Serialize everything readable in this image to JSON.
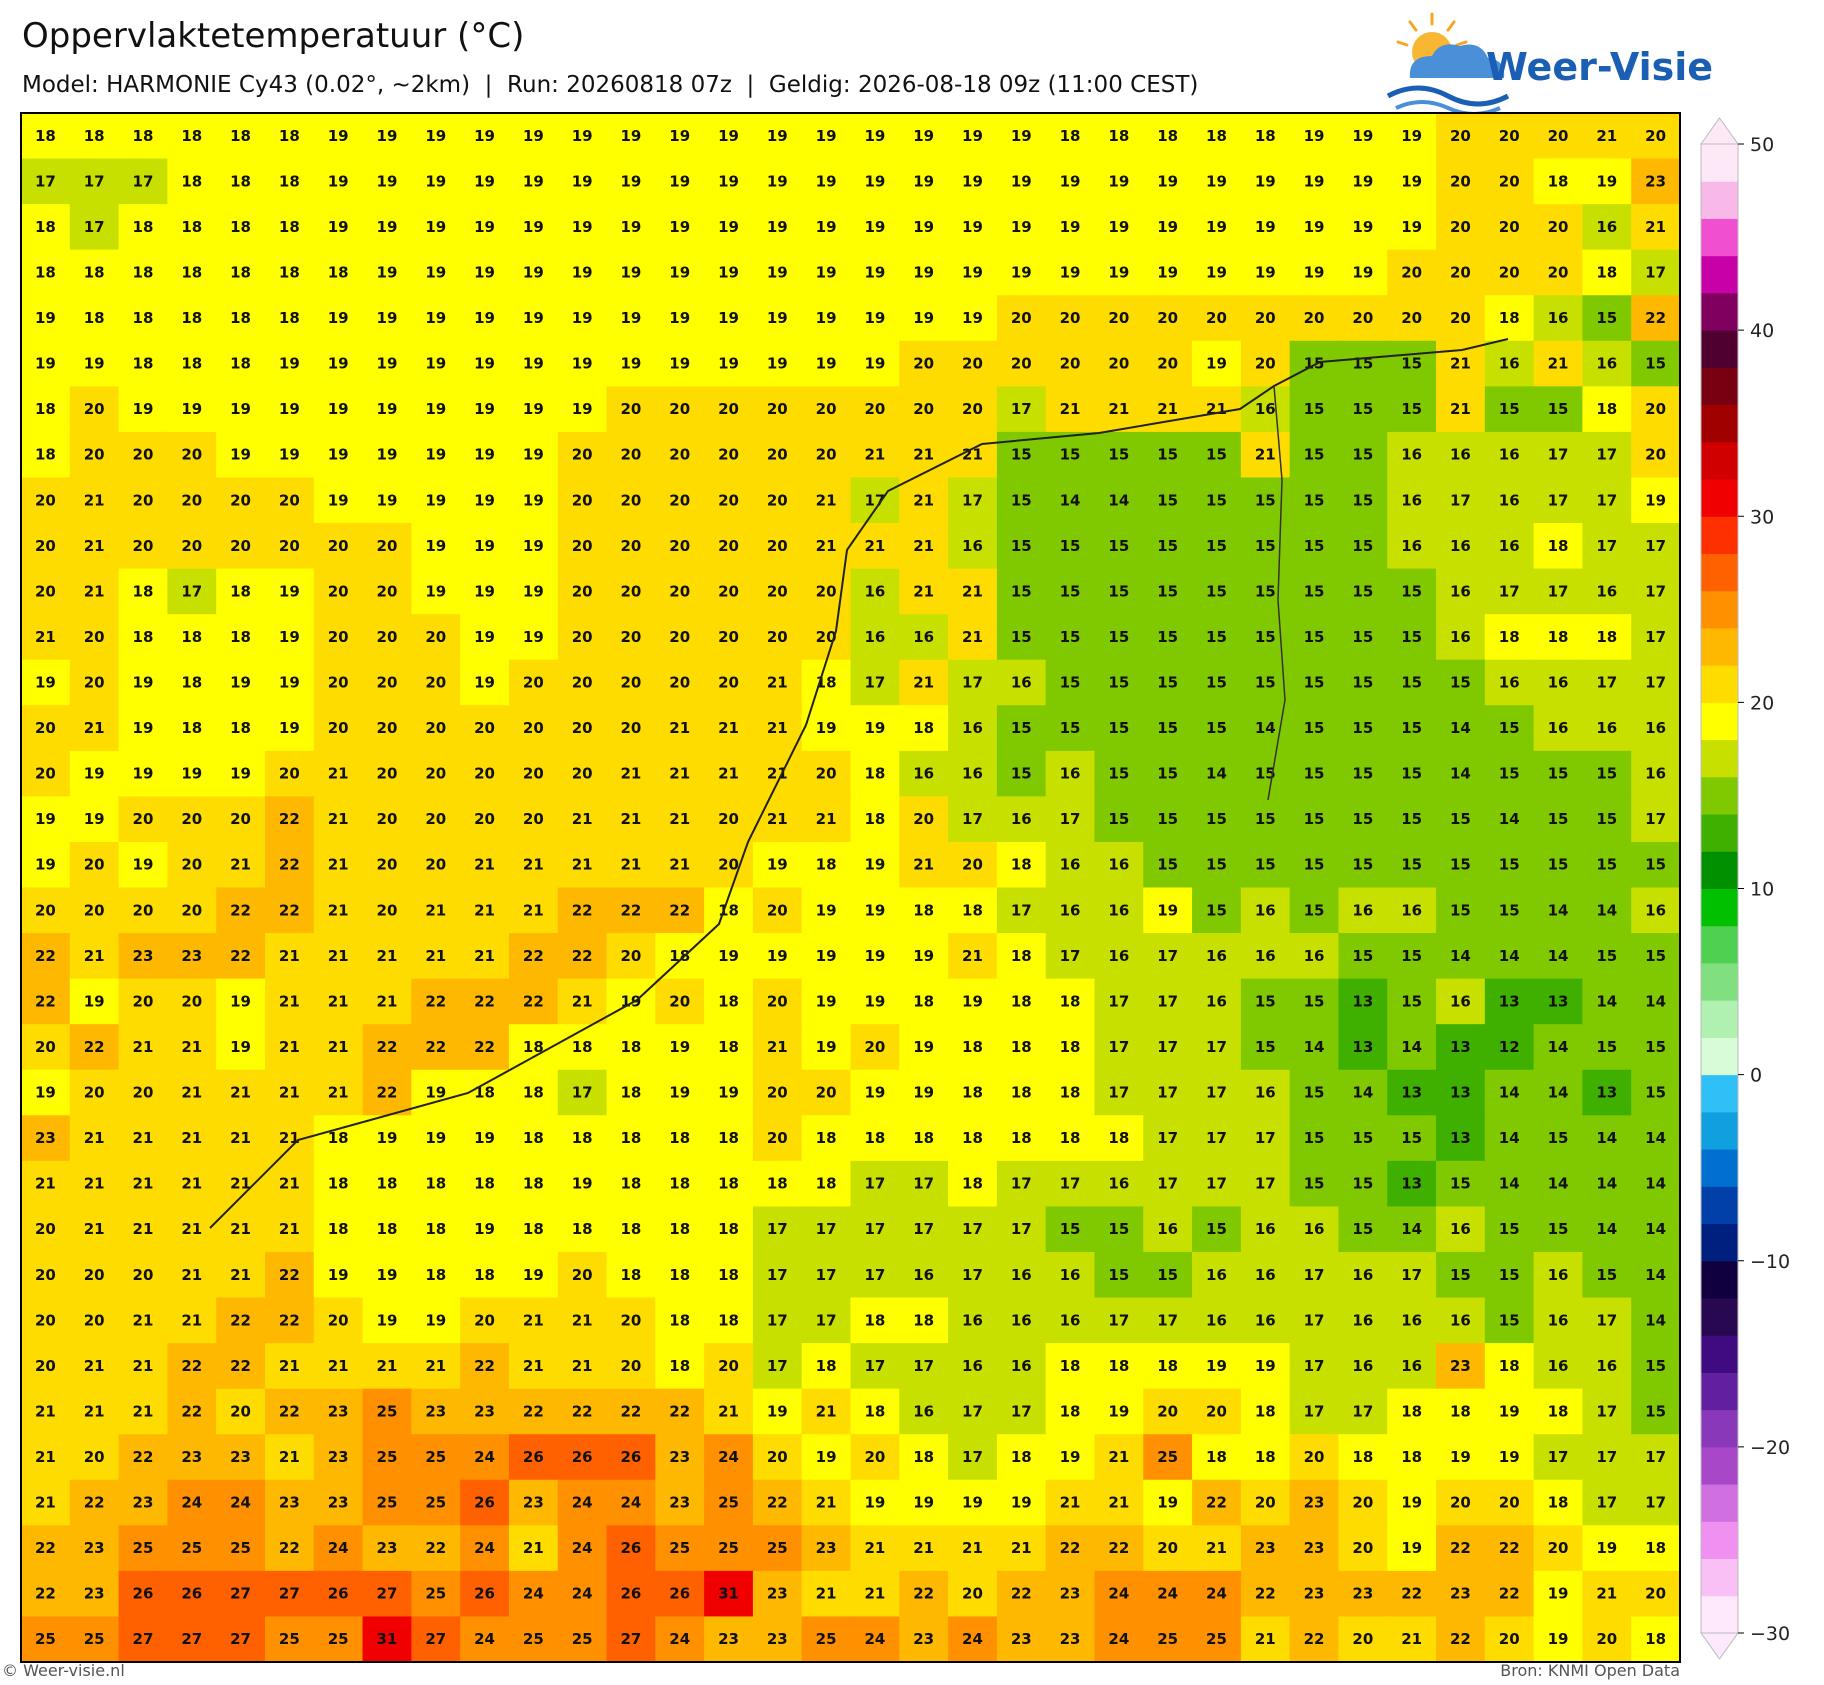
{
  "header": {
    "title": "Oppervlaktetemperatuur (°C)",
    "subtitle": "Model: HARMONIE Cy43 (0.02°, ~2km)  |  Run: 20260818 07z  |  Geldig: 2026-08-18 09z (11:00 CEST)"
  },
  "logo": "Weer-Visie",
  "map": {
    "grid": [
      [
        18,
        18,
        18,
        18,
        18,
        18,
        19,
        19,
        19,
        19,
        19,
        19,
        19,
        19,
        19,
        19,
        19,
        19,
        19,
        19,
        19,
        18,
        18,
        18,
        18,
        18,
        19,
        19,
        19,
        20,
        20,
        20,
        21,
        20
      ],
      [
        17,
        17,
        17,
        18,
        18,
        18,
        19,
        19,
        19,
        19,
        19,
        19,
        19,
        19,
        19,
        19,
        19,
        19,
        19,
        19,
        19,
        19,
        19,
        19,
        19,
        19,
        19,
        19,
        19,
        20,
        20,
        18,
        19,
        23
      ],
      [
        18,
        17,
        18,
        18,
        18,
        18,
        19,
        19,
        19,
        19,
        19,
        19,
        19,
        19,
        19,
        19,
        19,
        19,
        19,
        19,
        19,
        19,
        19,
        19,
        19,
        19,
        19,
        19,
        19,
        20,
        20,
        20,
        16,
        21
      ],
      [
        18,
        18,
        18,
        18,
        18,
        18,
        18,
        19,
        19,
        19,
        19,
        19,
        19,
        19,
        19,
        19,
        19,
        19,
        19,
        19,
        19,
        19,
        19,
        19,
        19,
        19,
        19,
        19,
        20,
        20,
        20,
        20,
        18,
        17
      ],
      [
        19,
        18,
        18,
        18,
        18,
        18,
        19,
        19,
        19,
        19,
        19,
        19,
        19,
        19,
        19,
        19,
        19,
        19,
        19,
        19,
        20,
        20,
        20,
        20,
        20,
        20,
        20,
        20,
        20,
        20,
        18,
        16,
        15,
        22
      ],
      [
        19,
        19,
        18,
        18,
        18,
        19,
        19,
        19,
        19,
        19,
        19,
        19,
        19,
        19,
        19,
        19,
        19,
        19,
        20,
        20,
        20,
        20,
        20,
        20,
        19,
        20,
        15,
        15,
        15,
        21,
        16,
        21,
        16,
        15
      ],
      [
        18,
        20,
        19,
        19,
        19,
        19,
        19,
        19,
        19,
        19,
        19,
        19,
        20,
        20,
        20,
        20,
        20,
        20,
        20,
        20,
        17,
        21,
        21,
        21,
        21,
        16,
        15,
        15,
        15,
        21,
        15,
        15,
        18,
        20
      ],
      [
        18,
        20,
        20,
        20,
        19,
        19,
        19,
        19,
        19,
        19,
        19,
        20,
        20,
        20,
        20,
        20,
        20,
        21,
        21,
        21,
        15,
        15,
        15,
        15,
        15,
        21,
        15,
        15,
        16,
        16,
        16,
        17,
        17,
        20
      ],
      [
        20,
        21,
        20,
        20,
        20,
        20,
        19,
        19,
        19,
        19,
        19,
        20,
        20,
        20,
        20,
        20,
        21,
        17,
        21,
        17,
        15,
        14,
        14,
        15,
        15,
        15,
        15,
        15,
        16,
        17,
        16,
        17,
        17,
        19
      ],
      [
        20,
        21,
        20,
        20,
        20,
        20,
        20,
        20,
        19,
        19,
        19,
        20,
        20,
        20,
        20,
        20,
        21,
        21,
        21,
        16,
        15,
        15,
        15,
        15,
        15,
        15,
        15,
        15,
        16,
        16,
        16,
        18,
        17,
        17
      ],
      [
        20,
        21,
        18,
        17,
        18,
        19,
        20,
        20,
        19,
        19,
        19,
        20,
        20,
        20,
        20,
        20,
        20,
        16,
        21,
        21,
        15,
        15,
        15,
        15,
        15,
        15,
        15,
        15,
        15,
        16,
        17,
        17,
        16,
        17
      ],
      [
        21,
        20,
        18,
        18,
        18,
        19,
        20,
        20,
        20,
        19,
        19,
        20,
        20,
        20,
        20,
        20,
        20,
        16,
        16,
        21,
        15,
        15,
        15,
        15,
        15,
        15,
        15,
        15,
        15,
        16,
        18,
        18,
        18,
        17
      ],
      [
        19,
        20,
        19,
        18,
        19,
        19,
        20,
        20,
        20,
        19,
        20,
        20,
        20,
        20,
        20,
        21,
        18,
        17,
        21,
        17,
        16,
        15,
        15,
        15,
        15,
        15,
        15,
        15,
        15,
        15,
        16,
        16,
        17,
        17
      ],
      [
        20,
        21,
        19,
        18,
        18,
        19,
        20,
        20,
        20,
        20,
        20,
        20,
        20,
        21,
        21,
        21,
        19,
        19,
        18,
        16,
        15,
        15,
        15,
        15,
        15,
        14,
        15,
        15,
        15,
        14,
        15,
        16,
        16,
        16
      ],
      [
        20,
        19,
        19,
        19,
        19,
        20,
        21,
        20,
        20,
        20,
        20,
        20,
        21,
        21,
        21,
        21,
        20,
        18,
        16,
        16,
        15,
        16,
        15,
        15,
        14,
        15,
        15,
        15,
        15,
        14,
        15,
        15,
        15,
        16
      ],
      [
        19,
        19,
        20,
        20,
        20,
        22,
        21,
        20,
        20,
        20,
        20,
        21,
        21,
        21,
        20,
        21,
        21,
        18,
        20,
        17,
        16,
        17,
        15,
        15,
        15,
        15,
        15,
        15,
        15,
        15,
        14,
        15,
        15,
        17
      ],
      [
        19,
        20,
        19,
        20,
        21,
        22,
        21,
        20,
        20,
        21,
        21,
        21,
        21,
        21,
        20,
        19,
        18,
        19,
        21,
        20,
        18,
        16,
        16,
        15,
        15,
        15,
        15,
        15,
        15,
        15,
        15,
        15,
        15,
        15
      ],
      [
        20,
        20,
        20,
        20,
        22,
        22,
        21,
        20,
        21,
        21,
        21,
        22,
        22,
        22,
        18,
        20,
        19,
        19,
        18,
        18,
        17,
        16,
        16,
        19,
        15,
        16,
        15,
        16,
        16,
        15,
        15,
        14,
        14,
        16
      ],
      [
        22,
        21,
        23,
        23,
        22,
        21,
        21,
        21,
        21,
        21,
        22,
        22,
        20,
        18,
        19,
        19,
        19,
        19,
        19,
        21,
        18,
        17,
        16,
        17,
        16,
        16,
        16,
        15,
        15,
        14,
        14,
        14,
        15,
        15
      ],
      [
        22,
        19,
        20,
        20,
        19,
        21,
        21,
        21,
        22,
        22,
        22,
        21,
        19,
        20,
        18,
        20,
        19,
        19,
        18,
        19,
        18,
        18,
        17,
        17,
        16,
        15,
        15,
        13,
        15,
        16,
        13,
        13,
        14,
        14
      ],
      [
        20,
        22,
        21,
        21,
        19,
        21,
        21,
        22,
        22,
        22,
        18,
        18,
        18,
        19,
        18,
        21,
        19,
        20,
        19,
        18,
        18,
        18,
        17,
        17,
        17,
        15,
        14,
        13,
        14,
        13,
        12,
        14,
        15,
        15
      ],
      [
        19,
        20,
        20,
        21,
        21,
        21,
        21,
        22,
        19,
        18,
        18,
        17,
        18,
        19,
        19,
        20,
        20,
        19,
        19,
        18,
        18,
        18,
        17,
        17,
        17,
        16,
        15,
        14,
        13,
        13,
        14,
        14,
        13,
        15
      ],
      [
        23,
        21,
        21,
        21,
        21,
        21,
        18,
        19,
        19,
        19,
        18,
        18,
        18,
        18,
        18,
        20,
        18,
        18,
        18,
        18,
        18,
        18,
        18,
        17,
        17,
        17,
        15,
        15,
        15,
        13,
        14,
        15,
        14,
        14
      ],
      [
        21,
        21,
        21,
        21,
        21,
        21,
        18,
        18,
        18,
        18,
        18,
        19,
        18,
        18,
        18,
        18,
        18,
        17,
        17,
        18,
        17,
        17,
        16,
        17,
        17,
        17,
        15,
        15,
        13,
        15,
        14,
        14,
        14,
        14
      ],
      [
        20,
        21,
        21,
        21,
        21,
        21,
        18,
        18,
        18,
        19,
        18,
        18,
        18,
        18,
        18,
        17,
        17,
        17,
        17,
        17,
        17,
        15,
        15,
        16,
        15,
        16,
        16,
        15,
        14,
        16,
        15,
        15,
        14,
        14
      ],
      [
        20,
        20,
        20,
        21,
        21,
        22,
        19,
        19,
        18,
        18,
        19,
        20,
        18,
        18,
        18,
        17,
        17,
        17,
        16,
        17,
        16,
        16,
        15,
        15,
        16,
        16,
        17,
        16,
        17,
        15,
        15,
        16,
        15,
        14
      ],
      [
        20,
        20,
        21,
        21,
        22,
        22,
        20,
        19,
        19,
        20,
        21,
        21,
        20,
        18,
        18,
        17,
        17,
        18,
        18,
        16,
        16,
        16,
        17,
        17,
        16,
        16,
        17,
        16,
        16,
        16,
        15,
        16,
        17,
        14
      ],
      [
        20,
        21,
        21,
        22,
        22,
        21,
        21,
        21,
        21,
        22,
        21,
        21,
        20,
        18,
        20,
        17,
        18,
        17,
        17,
        16,
        16,
        18,
        18,
        18,
        19,
        19,
        17,
        16,
        16,
        23,
        18,
        16,
        16,
        15
      ],
      [
        21,
        21,
        21,
        22,
        20,
        22,
        23,
        25,
        23,
        23,
        22,
        22,
        22,
        22,
        21,
        19,
        21,
        18,
        16,
        17,
        17,
        18,
        19,
        20,
        20,
        18,
        17,
        17,
        18,
        18,
        19,
        18,
        17,
        15
      ],
      [
        21,
        20,
        22,
        23,
        23,
        21,
        23,
        25,
        25,
        24,
        26,
        26,
        26,
        23,
        24,
        20,
        19,
        20,
        18,
        17,
        18,
        19,
        21,
        25,
        18,
        18,
        20,
        18,
        18,
        19,
        19,
        17,
        17,
        17
      ],
      [
        21,
        22,
        23,
        24,
        24,
        23,
        23,
        25,
        25,
        26,
        23,
        24,
        24,
        23,
        25,
        22,
        21,
        19,
        19,
        19,
        19,
        21,
        21,
        19,
        22,
        20,
        23,
        20,
        19,
        20,
        20,
        18,
        17,
        17
      ],
      [
        22,
        23,
        25,
        25,
        25,
        22,
        24,
        23,
        22,
        24,
        21,
        24,
        26,
        25,
        25,
        25,
        23,
        21,
        21,
        21,
        21,
        22,
        22,
        20,
        21,
        23,
        23,
        20,
        19,
        22,
        22,
        20,
        19,
        18
      ],
      [
        22,
        23,
        26,
        26,
        27,
        27,
        26,
        27,
        25,
        26,
        24,
        24,
        26,
        26,
        31,
        23,
        21,
        21,
        22,
        20,
        22,
        23,
        24,
        24,
        24,
        22,
        23,
        23,
        22,
        23,
        22,
        19,
        21,
        20
      ],
      [
        25,
        25,
        27,
        27,
        27,
        25,
        25,
        31,
        27,
        24,
        25,
        25,
        27,
        24,
        23,
        23,
        25,
        24,
        23,
        24,
        23,
        23,
        24,
        25,
        25,
        21,
        22,
        20,
        21,
        22,
        20,
        19,
        20,
        18
      ]
    ]
  },
  "colorbar": {
    "lim": [
      -30,
      50
    ],
    "ticks": [
      {
        "value": -30,
        "label": "−30"
      },
      {
        "value": -20,
        "label": "−20"
      },
      {
        "value": -10,
        "label": "−10"
      },
      0,
      10,
      20,
      30,
      40,
      50
    ],
    "colors": [
      "#fde8fc",
      "#f8c0f4",
      "#f090f0",
      "#d070e0",
      "#a848c8",
      "#8838b8",
      "#6020a0",
      "#400a80",
      "#280850",
      "#100040",
      "#002080",
      "#0040a8",
      "#0070d0",
      "#10a0e0",
      "#30c0f8",
      "#d8fcd8",
      "#b0f0b0",
      "#80e080",
      "#50d050",
      "#00c000",
      "#009000",
      "#40b000",
      "#80c800",
      "#c8e000",
      "#ffff00",
      "#ffdc00",
      "#ffb800",
      "#ff9000",
      "#ff6000",
      "#ff3000",
      "#f00000",
      "#d00000",
      "#a00000",
      "#780010",
      "#500030",
      "#800060",
      "#c800a8",
      "#f050d0",
      "#f8b8e8",
      "#fde8f8"
    ]
  },
  "footer": {
    "left": "© Weer-visie.nl",
    "right": "Bron: KNMI Open Data"
  }
}
